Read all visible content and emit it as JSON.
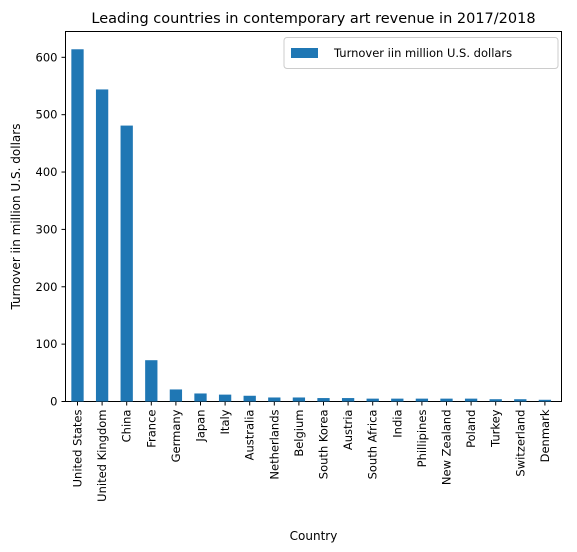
{
  "chart_data": {
    "type": "bar",
    "title": "Leading countries in contemporary art revenue in 2017/2018",
    "xlabel": "Country",
    "ylabel": "Turnover iin million U.S. dollars",
    "categories": [
      "United States",
      "United Kingdom",
      "China",
      "France",
      "Germany",
      "Japan",
      "Italy",
      "Australia",
      "Netherlands",
      "Belgium",
      "South Korea",
      "Austria",
      "South Africa",
      "India",
      "Phillipines",
      "New Zealand",
      "Poland",
      "Turkey",
      "Switzerland",
      "Denmark"
    ],
    "series": [
      {
        "name": "Turnover iin million U.S. dollars",
        "color": "#1f77b4",
        "values": [
          614,
          544,
          481,
          72,
          21,
          14,
          12,
          10,
          7,
          7,
          6,
          6,
          5,
          5,
          5,
          5,
          5,
          4,
          4,
          3
        ]
      }
    ],
    "ylim": [
      0,
      645
    ],
    "yticks": [
      0,
      100,
      200,
      300,
      400,
      500,
      600
    ],
    "grid": false,
    "legend": "top-right"
  }
}
